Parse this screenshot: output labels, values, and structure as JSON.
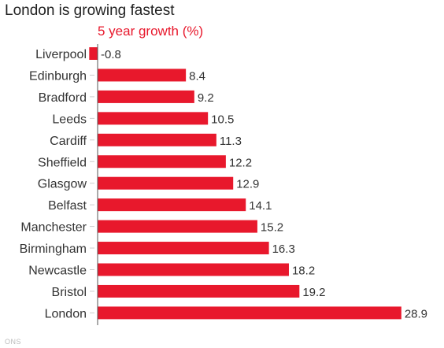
{
  "chart_data": {
    "type": "bar",
    "orientation": "horizontal",
    "title": "London is growing fastest",
    "subtitle": "5 year growth (%)",
    "source": "ONS",
    "categories": [
      "Liverpool",
      "Edinburgh",
      "Bradford",
      "Leeds",
      "Cardiff",
      "Sheffield",
      "Glasgow",
      "Belfast",
      "Manchester",
      "Birmingham",
      "Newcastle",
      "Bristol",
      "London"
    ],
    "values": [
      -0.8,
      8.4,
      9.2,
      10.5,
      11.3,
      12.2,
      12.9,
      14.1,
      15.2,
      16.3,
      18.2,
      19.2,
      28.9
    ],
    "value_labels": [
      "-0.8",
      "8.4",
      "9.2",
      "10.5",
      "11.3",
      "12.2",
      "12.9",
      "14.1",
      "15.2",
      "16.3",
      "18.2",
      "19.2",
      "28.9"
    ],
    "bar_color": "#e8182c",
    "grid": false,
    "legend": "none"
  }
}
